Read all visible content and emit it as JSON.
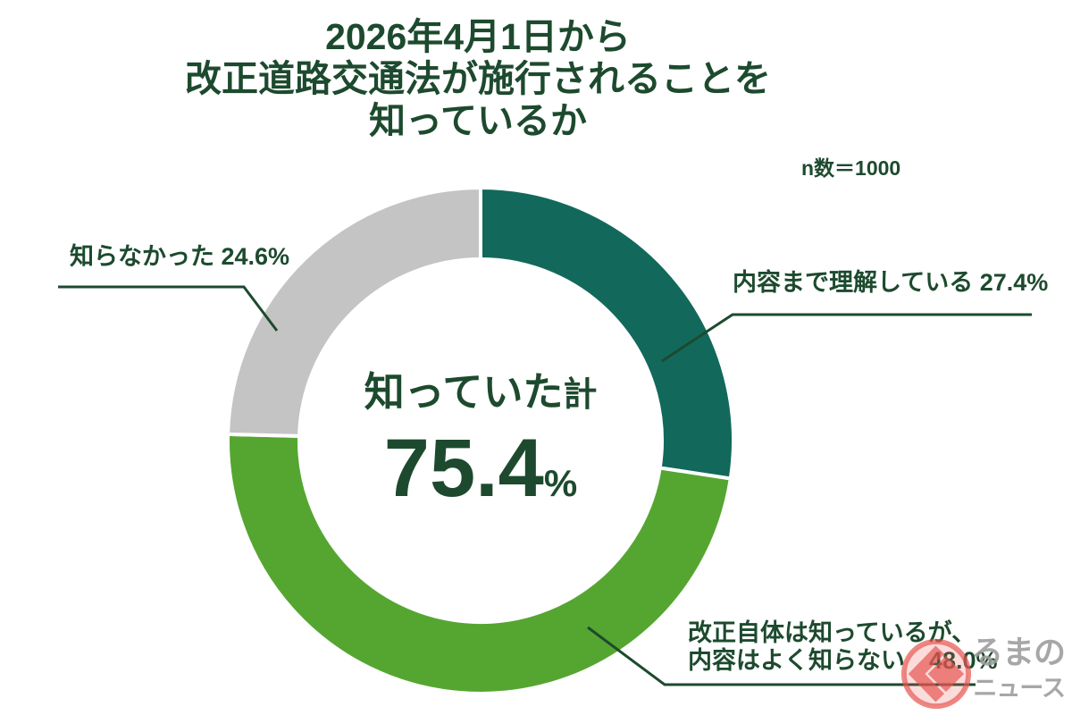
{
  "title": {
    "lines": [
      "2026年4月1日から",
      "改正道路交通法が施行されることを",
      "知っているか"
    ]
  },
  "sample_size": "n数＝1000",
  "chart_data": {
    "type": "pie",
    "donut": true,
    "title": "2026年4月1日から改正道路交通法が施行されることを知っているか",
    "sample_size_label": "n数＝1000",
    "n": 1000,
    "start_angle_deg": 0,
    "direction": "clockwise",
    "segments": [
      {
        "label": "内容まで理解している",
        "value": 27.4,
        "color": "#12695b"
      },
      {
        "label": "改正自体は知っているが、内容はよく知らない",
        "value": 48.0,
        "color": "#55a630"
      },
      {
        "label": "知らなかった",
        "value": 24.6,
        "color": "#c4c4c4"
      }
    ],
    "center": {
      "label_main": "知っていた",
      "label_suffix": "計",
      "value": "75.4",
      "unit": "%"
    }
  },
  "annotations": {
    "right_label": "内容まで理解している 27.4%",
    "bottom_label_line1": "改正自体は知っているが、",
    "bottom_label_line2": "内容はよく知らない　48.0%",
    "left_label": "知らなかった 24.6%"
  },
  "logo": {
    "line1": "るまの",
    "line2": "ニュース",
    "accent_color": "#e65550",
    "text_color": "#9c9c9c"
  },
  "colors": {
    "text_dark_green": "#1d4a2e",
    "leader_line": "#1d4a2e",
    "background": "#ffffff"
  }
}
